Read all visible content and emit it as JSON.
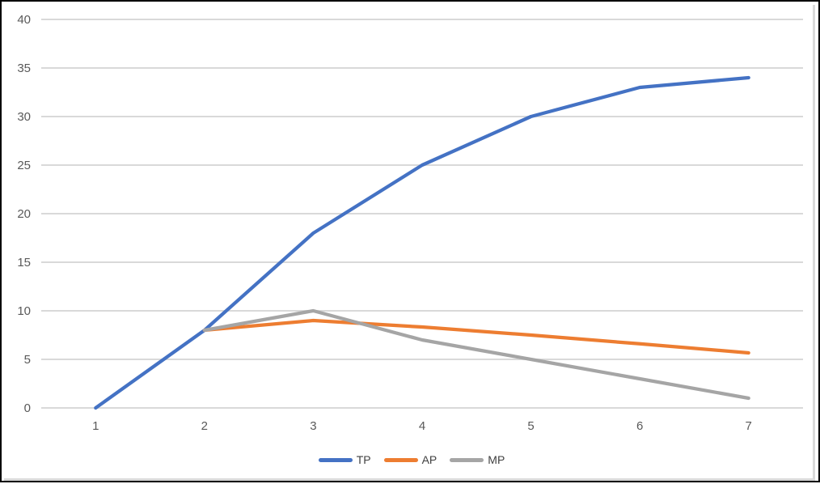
{
  "chart_data": {
    "type": "line",
    "title": "",
    "xlabel": "",
    "ylabel": "",
    "x": [
      1,
      2,
      3,
      4,
      5,
      6,
      7
    ],
    "xticks": [
      "1",
      "2",
      "3",
      "4",
      "5",
      "6",
      "7"
    ],
    "yticks": [
      0,
      5,
      10,
      15,
      20,
      25,
      30,
      35,
      40
    ],
    "ylim": [
      0,
      40
    ],
    "grid": true,
    "legend_position": "bottom",
    "gridline_color": "#d9d9d9",
    "tick_color": "#595959",
    "legend_text_color": "#404040",
    "frame_color": "#000000",
    "background_color": "#ffffff",
    "series": [
      {
        "name": "TP",
        "color": "#4472C4",
        "values": [
          0,
          8,
          18,
          25,
          30,
          33,
          34
        ]
      },
      {
        "name": "AP",
        "color": "#ED7D31",
        "values": [
          null,
          8,
          9,
          8.33,
          7.5,
          6.6,
          5.67
        ]
      },
      {
        "name": "MP",
        "color": "#A5A5A5",
        "values": [
          null,
          8,
          10,
          7,
          5,
          3,
          1
        ]
      }
    ]
  }
}
